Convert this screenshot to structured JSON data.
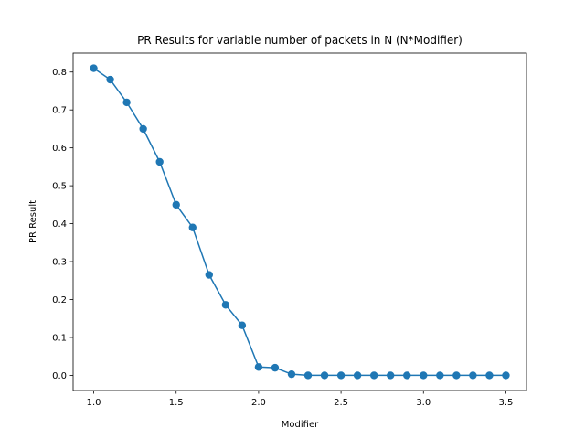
{
  "chart_data": {
    "type": "line",
    "title": "PR Results for variable number of packets in N (N*Modifier)",
    "xlabel": "Modifier",
    "ylabel": "PR Result",
    "xlim": [
      0.875,
      3.625
    ],
    "ylim": [
      -0.04,
      0.85
    ],
    "xticks": [
      "1.0",
      "1.5",
      "2.0",
      "2.5",
      "3.0",
      "3.5"
    ],
    "yticks": [
      "0.0",
      "0.1",
      "0.2",
      "0.3",
      "0.4",
      "0.5",
      "0.6",
      "0.7",
      "0.8"
    ],
    "grid": false,
    "markers": true,
    "series_color": "#1f77b4",
    "series": [
      {
        "x": [
          1.0,
          1.1,
          1.2,
          1.3,
          1.4,
          1.5,
          1.6,
          1.7,
          1.8,
          1.9,
          2.0,
          2.1,
          2.2,
          2.3,
          2.4,
          2.5,
          2.6,
          2.7,
          2.8,
          2.9,
          3.0,
          3.1,
          3.2,
          3.3,
          3.4,
          3.5
        ],
        "values": [
          0.81,
          0.78,
          0.72,
          0.65,
          0.563,
          0.45,
          0.39,
          0.265,
          0.186,
          0.132,
          0.022,
          0.02,
          0.003,
          0.0,
          0.0,
          0.0,
          0.0,
          0.0,
          0.0,
          0.0,
          0.0,
          0.0,
          0.0,
          0.0,
          0.0,
          0.0
        ]
      }
    ]
  }
}
